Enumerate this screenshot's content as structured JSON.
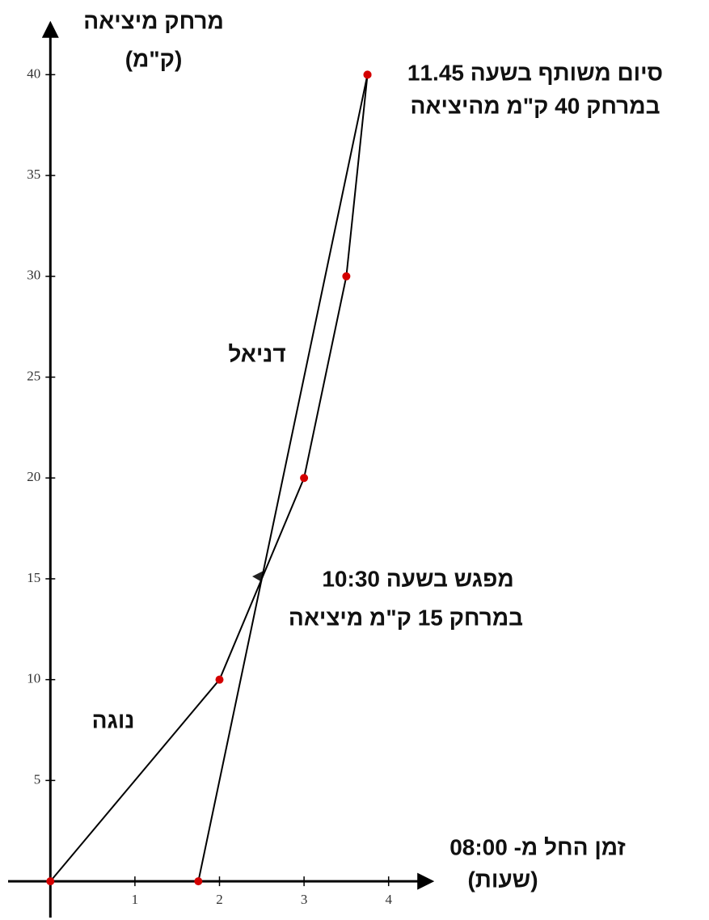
{
  "chart_data": {
    "type": "line",
    "y_label_lines": [
      "מרחק מיציאה",
      "(ק\"מ)"
    ],
    "x_label_lines": [
      "זמן החל מ- 08:00",
      "(שעות)"
    ],
    "xlim": [
      -0.5,
      4.5
    ],
    "ylim": [
      -1.8,
      42.5
    ],
    "xticks": [
      1,
      2,
      3,
      4
    ],
    "yticks": [
      5,
      10,
      15,
      20,
      25,
      30,
      35,
      40
    ],
    "grid": false,
    "marker_color": "#d40000",
    "series": [
      {
        "name": "נוגה",
        "color": "#000000",
        "x": [
          0,
          2,
          3,
          3.5,
          3.75
        ],
        "values": [
          0,
          10,
          20,
          30,
          40
        ]
      },
      {
        "name": "דניאל",
        "color": "#000000",
        "x": [
          1.75,
          3.75
        ],
        "values": [
          0,
          40
        ]
      }
    ],
    "annotations": [
      {
        "lines": [
          "סיום משותף  בשעה 11.45",
          "במרחק 40 ק\"מ מהיציאה"
        ]
      },
      {
        "lines": [
          "מפגש בשעה 10:30",
          "במרחק 15 ק\"מ מיציאה"
        ]
      }
    ]
  }
}
